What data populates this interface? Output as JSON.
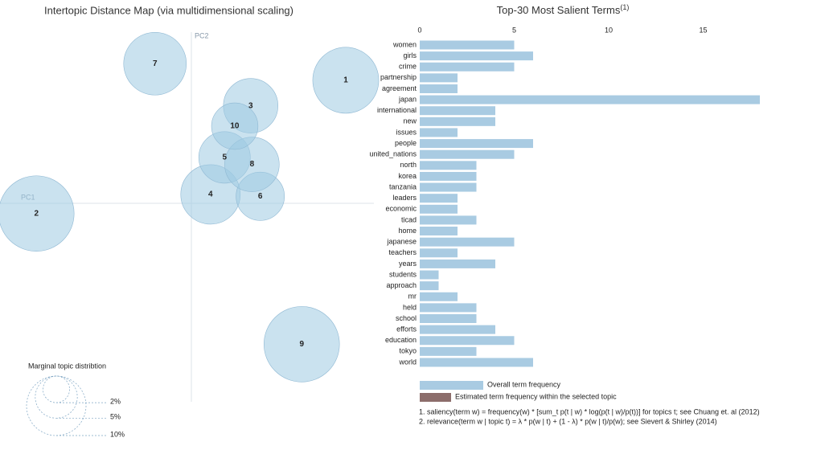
{
  "chart_data": [
    {
      "type": "scatter",
      "title": "Intertopic Distance Map (via multidimensional scaling)",
      "xlabel": "PC1",
      "ylabel": "PC2",
      "labels": [
        "1",
        "2",
        "3",
        "4",
        "5",
        "6",
        "7",
        "8",
        "9",
        "10"
      ],
      "x": [
        0.242,
        -0.243,
        0.093,
        0.03,
        0.052,
        0.108,
        -0.057,
        0.095,
        0.173,
        0.068
      ],
      "y": [
        0.193,
        -0.016,
        0.153,
        0.014,
        0.072,
        0.011,
        0.219,
        0.061,
        -0.221,
        0.121
      ],
      "sizes": [
        12.3,
        16.1,
        8.4,
        10,
        7.5,
        6.6,
        11.1,
        8.4,
        16.1,
        6.1
      ],
      "xlim": [
        -0.3,
        0.3
      ],
      "ylim": [
        -0.3,
        0.3
      ],
      "color": "#9ecae1",
      "size_legend": {
        "title": "Marginal topic distribtion",
        "ticks": [
          {
            "value": 2,
            "label": "2%"
          },
          {
            "value": 5,
            "label": "5%"
          },
          {
            "value": 10,
            "label": "10%"
          }
        ]
      }
    },
    {
      "type": "bar",
      "orientation": "horizontal",
      "title": "Top-30 Most Salient Terms",
      "title_note": "(1)",
      "categories": [
        "women",
        "girls",
        "crime",
        "partnership",
        "agreement",
        "japan",
        "international",
        "new",
        "issues",
        "people",
        "united_nations",
        "north",
        "korea",
        "tanzania",
        "leaders",
        "economic",
        "ticad",
        "home",
        "japanese",
        "teachers",
        "years",
        "students",
        "approach",
        "mr",
        "held",
        "school",
        "efforts",
        "education",
        "tokyo",
        "world"
      ],
      "values": [
        5,
        6,
        5,
        2,
        2,
        18,
        4,
        4,
        2,
        6,
        5,
        3,
        3,
        3,
        2,
        2,
        3,
        2,
        5,
        2,
        4,
        1,
        1,
        2,
        3,
        3,
        4,
        5,
        3,
        6
      ],
      "xlim": [
        0,
        18
      ],
      "xticks": [
        0,
        5,
        10,
        15
      ],
      "color": "#a9cbe2",
      "legend": [
        {
          "name": "Overall term frequency",
          "color": "#a9cbe2"
        },
        {
          "name": "Estimated term frequency within the selected topic",
          "color": "#8c6d6b"
        }
      ],
      "notes": [
        "1. saliency(term w) = frequency(w) * [sum_t p(t | w) * log(p(t | w)/p(t))] for topics t; see Chuang et. al (2012)",
        "2. relevance(term w | topic t) = λ * p(w | t) + (1 - λ) * p(w | t)/p(w); see Sievert & Shirley (2014)"
      ]
    }
  ]
}
